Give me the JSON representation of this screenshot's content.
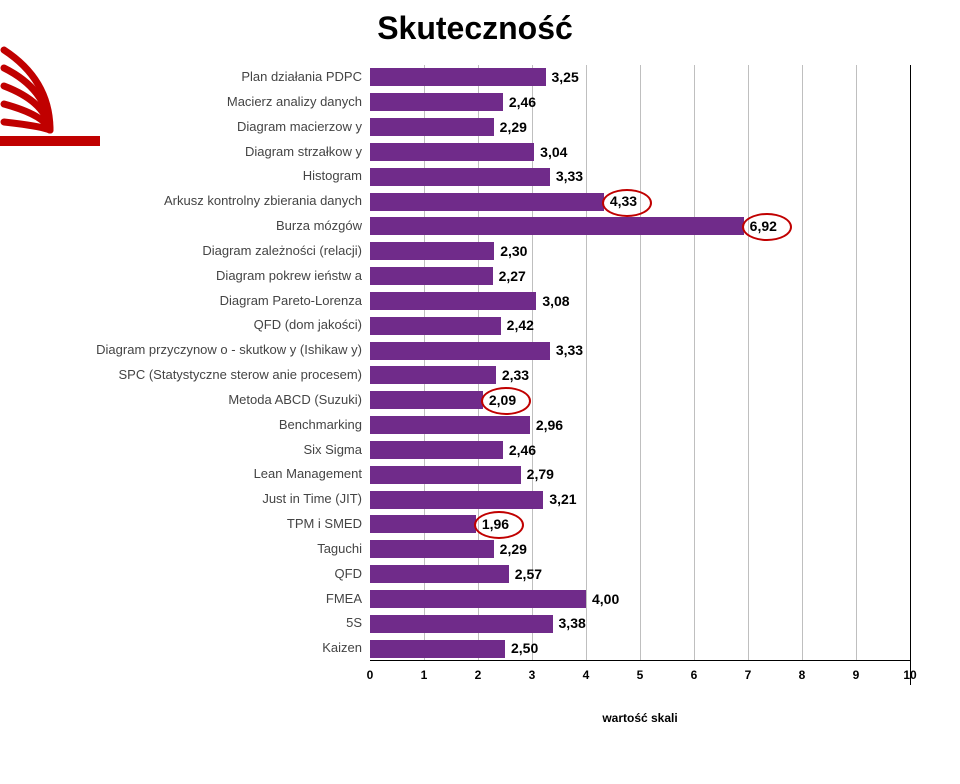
{
  "title": "Skuteczność",
  "axis_title": "wartość skali",
  "x": {
    "min": 0,
    "max": 10,
    "step": 1
  },
  "grid_color": "#bfbfbf",
  "bar_color": "#702b8a",
  "label_color": "#444444",
  "value_color": "#000000",
  "highlight_color": "#c00000",
  "rows": [
    {
      "label": "Plan działania PDPC",
      "value": 3.25,
      "text": "3,25"
    },
    {
      "label": "Macierz analizy danych",
      "value": 2.46,
      "text": "2,46"
    },
    {
      "label": "Diagram macierzow y",
      "value": 2.29,
      "text": "2,29"
    },
    {
      "label": "Diagram strzałkow y",
      "value": 3.04,
      "text": "3,04"
    },
    {
      "label": "Histogram",
      "value": 3.33,
      "text": "3,33"
    },
    {
      "label": "Arkusz kontrolny zbierania danych",
      "value": 4.33,
      "text": "4,33",
      "highlight": true
    },
    {
      "label": "Burza mózgów",
      "value": 6.92,
      "text": "6,92",
      "highlight": true
    },
    {
      "label": "Diagram zależności (relacji)",
      "value": 2.3,
      "text": "2,30"
    },
    {
      "label": "Diagram pokrew ieństw a",
      "value": 2.27,
      "text": "2,27"
    },
    {
      "label": "Diagram Pareto-Lorenza",
      "value": 3.08,
      "text": "3,08"
    },
    {
      "label": "QFD (dom jakości)",
      "value": 2.42,
      "text": "2,42"
    },
    {
      "label": "Diagram przyczynow o - skutkow y (Ishikaw y)",
      "value": 3.33,
      "text": "3,33"
    },
    {
      "label": "SPC (Statystyczne sterow anie procesem)",
      "value": 2.33,
      "text": "2,33"
    },
    {
      "label": "Metoda ABCD (Suzuki)",
      "value": 2.09,
      "text": "2,09",
      "highlight": true
    },
    {
      "label": "Benchmarking",
      "value": 2.96,
      "text": "2,96"
    },
    {
      "label": "Six Sigma",
      "value": 2.46,
      "text": "2,46"
    },
    {
      "label": "Lean Management",
      "value": 2.79,
      "text": "2,79"
    },
    {
      "label": "Just in Time (JIT)",
      "value": 3.21,
      "text": "3,21"
    },
    {
      "label": "TPM i SMED",
      "value": 1.96,
      "text": "1,96",
      "highlight": true
    },
    {
      "label": "Taguchi",
      "value": 2.29,
      "text": "2,29"
    },
    {
      "label": "QFD",
      "value": 2.57,
      "text": "2,57"
    },
    {
      "label": "FMEA",
      "value": 4.0,
      "text": "4,00"
    },
    {
      "label": "5S",
      "value": 3.38,
      "text": "3,38"
    },
    {
      "label": "Kaizen",
      "value": 2.5,
      "text": "2,50"
    }
  ],
  "logo": {
    "stroke": "#c00000"
  }
}
